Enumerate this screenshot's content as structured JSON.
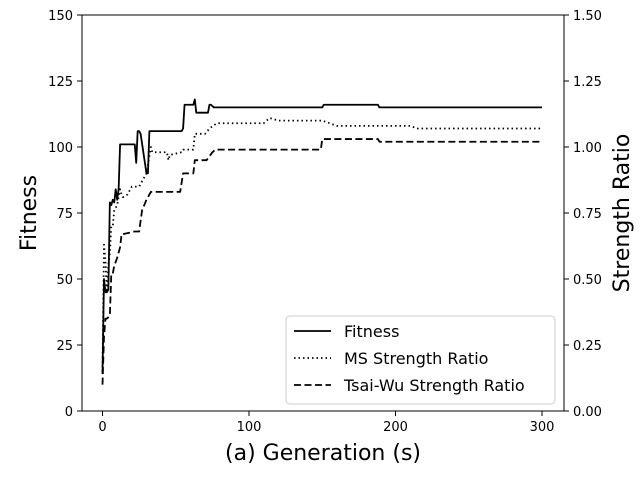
{
  "chart_data": {
    "type": "line",
    "xlabel": "(a) Generation (s)",
    "ylabel": "Fitness",
    "y2label": "Strength  Ratio",
    "xlim": [
      -14,
      315
    ],
    "ylim": [
      0,
      150
    ],
    "y2lim": [
      0,
      1.5
    ],
    "xticks": [
      0,
      100,
      200,
      300
    ],
    "yticks": [
      0,
      25,
      50,
      75,
      100,
      125,
      150
    ],
    "y2ticks": [
      0.0,
      0.25,
      0.5,
      0.75,
      1.0,
      1.25,
      1.5
    ],
    "xtick_labels": [
      "0",
      "100",
      "200",
      "300"
    ],
    "ytick_labels": [
      "0",
      "25",
      "50",
      "75",
      "100",
      "125",
      "150"
    ],
    "y2tick_labels": [
      "0.00",
      "0.25",
      "0.50",
      "0.75",
      "1.00",
      "1.25",
      "1.50"
    ],
    "legend_position": "bottom-right",
    "series": [
      {
        "name": "Fitness",
        "axis": "left",
        "style": "solid",
        "color": "#000000",
        "x": [
          0,
          1,
          2,
          3,
          4,
          5,
          6,
          7,
          8,
          9,
          10,
          11,
          12,
          13,
          14,
          15,
          22,
          23,
          24,
          25,
          26,
          30,
          31,
          32,
          33,
          34,
          54,
          55,
          56,
          62,
          63,
          64,
          72,
          73,
          74,
          76,
          77,
          150,
          151,
          188,
          189,
          300
        ],
        "y": [
          14,
          50,
          45,
          45,
          46,
          79,
          78,
          80,
          79,
          84,
          80,
          84,
          101,
          101,
          101,
          101,
          101,
          94,
          106,
          106,
          105,
          90,
          90,
          106,
          106,
          106,
          106,
          107,
          116,
          116,
          118,
          113,
          113,
          116,
          116,
          115,
          115,
          115,
          116,
          116,
          115,
          115
        ]
      },
      {
        "name": "MS Strength Ratio",
        "axis": "right",
        "style": "dotted",
        "color": "#000000",
        "x": [
          0,
          1,
          2,
          3,
          4,
          5,
          6,
          7,
          8,
          10,
          12,
          13,
          14,
          17,
          20,
          23,
          25,
          30,
          33,
          34,
          44,
          45,
          46,
          54,
          55,
          58,
          62,
          63,
          64,
          70,
          73,
          78,
          110,
          114,
          120,
          150,
          160,
          210,
          215,
          300
        ],
        "y": [
          0.15,
          0.63,
          0.57,
          0.45,
          0.55,
          0.6,
          0.7,
          0.7,
          0.76,
          0.78,
          0.84,
          0.82,
          0.81,
          0.82,
          0.85,
          0.85,
          0.85,
          0.9,
          1.0,
          0.98,
          0.98,
          0.95,
          0.97,
          0.98,
          0.99,
          0.99,
          0.99,
          1.05,
          1.05,
          1.05,
          1.07,
          1.09,
          1.09,
          1.11,
          1.1,
          1.1,
          1.08,
          1.08,
          1.07,
          1.07
        ]
      },
      {
        "name": "Tsai-Wu Strength Ratio",
        "axis": "right",
        "style": "dashed",
        "color": "#000000",
        "x": [
          0,
          1,
          2,
          3,
          5,
          6,
          7,
          8,
          10,
          12,
          13,
          14,
          22,
          25,
          27,
          30,
          33,
          34,
          53,
          55,
          62,
          63,
          71,
          75,
          77,
          149,
          150,
          188,
          189,
          300
        ],
        "y": [
          0.1,
          0.28,
          0.35,
          0.35,
          0.36,
          0.52,
          0.52,
          0.55,
          0.58,
          0.62,
          0.67,
          0.67,
          0.68,
          0.68,
          0.76,
          0.8,
          0.83,
          0.83,
          0.83,
          0.9,
          0.9,
          0.95,
          0.95,
          0.98,
          0.99,
          0.99,
          1.03,
          1.03,
          1.02,
          1.02
        ]
      }
    ]
  }
}
